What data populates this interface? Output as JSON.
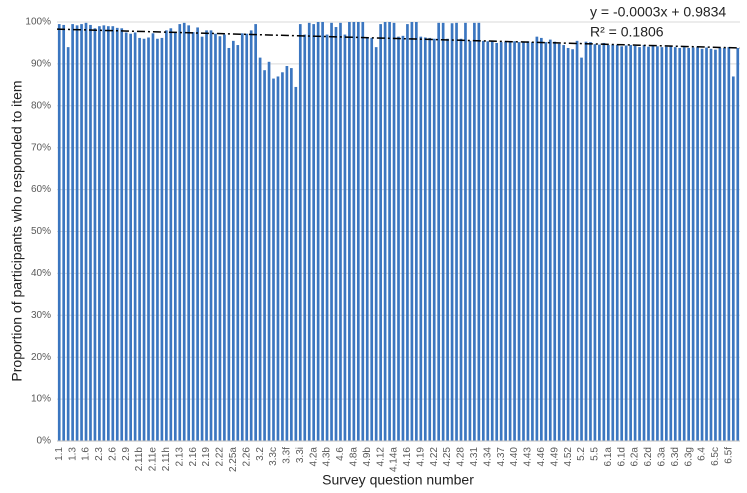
{
  "chart_data": {
    "type": "bar",
    "y_label": "Proportion of participants who responded to item",
    "x_label": "Survey question number",
    "annotations": [
      "y = -0.0003x + 0.9834",
      "R² = 0.1806"
    ],
    "color": "#3b76c0",
    "grid": true,
    "trendline": {
      "start": 98.3,
      "end": 93.8
    },
    "ylim": [
      0,
      100
    ],
    "yticks": [
      {
        "value": 0,
        "label": "0%"
      },
      {
        "value": 10,
        "label": "10%"
      },
      {
        "value": 20,
        "label": "20%"
      },
      {
        "value": 30,
        "label": "30%"
      },
      {
        "value": 40,
        "label": "40%"
      },
      {
        "value": 50,
        "label": "50%"
      },
      {
        "value": 60,
        "label": "60%"
      },
      {
        "value": 70,
        "label": "70%"
      },
      {
        "value": 80,
        "label": "80%"
      },
      {
        "value": 90,
        "label": "90%"
      },
      {
        "value": 100,
        "label": "100%"
      }
    ],
    "categories": [
      "1.1",
      null,
      null,
      "1.3",
      null,
      null,
      "1.6",
      null,
      null,
      "2.3",
      null,
      null,
      "2.6",
      null,
      null,
      "2.9",
      null,
      null,
      "2.11b",
      null,
      null,
      "2.11e",
      null,
      null,
      "2.11h",
      null,
      null,
      "2.13",
      null,
      null,
      "2.16",
      null,
      null,
      "2.19",
      null,
      null,
      "2.22",
      null,
      null,
      "2.25a",
      null,
      null,
      "2.26",
      null,
      null,
      "3.2",
      null,
      null,
      "3.3c",
      null,
      null,
      "3.3f",
      null,
      null,
      "3.3i",
      null,
      null,
      "4.2a",
      null,
      null,
      "4.3b",
      null,
      null,
      "4.6",
      null,
      null,
      "4.8a",
      null,
      null,
      "4.9b",
      null,
      null,
      "4.12",
      null,
      null,
      "4.14a",
      null,
      null,
      "4.16",
      null,
      null,
      "4.19",
      null,
      null,
      "4.22",
      null,
      null,
      "4.25",
      null,
      null,
      "4.28",
      null,
      null,
      "4.31",
      null,
      null,
      "4.34",
      null,
      null,
      "4.37",
      null,
      null,
      "4.40",
      null,
      null,
      "4.43",
      null,
      null,
      "4.46",
      null,
      null,
      "4.49",
      null,
      null,
      "4.52",
      null,
      null,
      "5.2",
      null,
      null,
      "5.5",
      null,
      null,
      "6.1a",
      null,
      null,
      "6.1d",
      null,
      null,
      "6.2a",
      null,
      null,
      "6.2d",
      null,
      null,
      "6.3a",
      null,
      null,
      "6.3d",
      null,
      null,
      "6.3g",
      null,
      null,
      "6.4",
      null,
      null,
      "6.5c",
      null,
      null,
      "6.5f",
      null,
      null
    ],
    "values": [
      99.5,
      99.3,
      94,
      99.5,
      99.2,
      99.5,
      99.8,
      99.3,
      98.5,
      99,
      99.2,
      99,
      99,
      98.6,
      98.5,
      97.5,
      97.2,
      97.5,
      96.2,
      96,
      96.3,
      97.3,
      96,
      96.2,
      98,
      98.5,
      97.5,
      99.5,
      99.8,
      99.2,
      97.6,
      98.7,
      96.5,
      98,
      98,
      97.2,
      96.6,
      97,
      93.8,
      95.5,
      94.5,
      97.3,
      97.2,
      98,
      99.5,
      91.5,
      88.5,
      90.5,
      86.5,
      87,
      88,
      89.5,
      89,
      84.5,
      99.5,
      97,
      99.8,
      99.5,
      100,
      100,
      97,
      99.8,
      98.8,
      99.8,
      97,
      100,
      100,
      100,
      100,
      96.3,
      96.2,
      94,
      99.5,
      100,
      100,
      99.8,
      96.5,
      96.7,
      99.5,
      100,
      100,
      96.5,
      96.3,
      96.2,
      96,
      99.8,
      99.8,
      96,
      99.7,
      99.8,
      96,
      99.8,
      95.5,
      99.8,
      99.8,
      95.5,
      95.4,
      95.5,
      95,
      95.2,
      95.3,
      95.2,
      95.4,
      95.2,
      95.3,
      95.4,
      95.2,
      96.5,
      96.2,
      95.2,
      95.8,
      95.3,
      94.8,
      94.5,
      93.8,
      93.5,
      95.5,
      91.5,
      95.3,
      95.2,
      94.7,
      94.6,
      95,
      94.5,
      94.6,
      94.5,
      94.2,
      94.4,
      94.5,
      94.3,
      94,
      94.5,
      94.1,
      94.3,
      94.2,
      94,
      94.1,
      94.3,
      94,
      93.8,
      94,
      93.8,
      93.9,
      94,
      93.6,
      93.9,
      93.6,
      93.4,
      93.8,
      93.8,
      94,
      87,
      93.8
    ]
  }
}
